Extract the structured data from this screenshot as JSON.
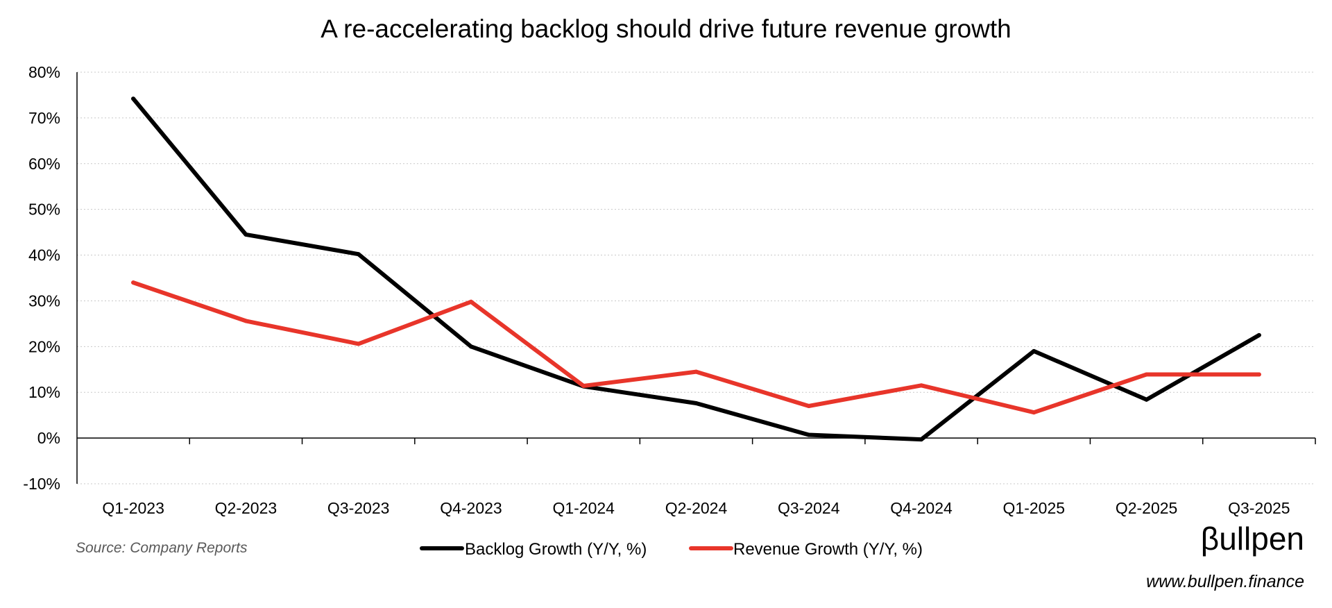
{
  "chart_data": {
    "type": "line",
    "title": "A re-accelerating backlog should drive future revenue growth",
    "categories": [
      "Q1-2023",
      "Q2-2023",
      "Q3-2023",
      "Q4-2023",
      "Q1-2024",
      "Q2-2024",
      "Q3-2024",
      "Q4-2024",
      "Q1-2025",
      "Q2-2025",
      "Q3-2025"
    ],
    "series": [
      {
        "name": "Backlog Growth (Y/Y, %)",
        "color": "#000000",
        "values": [
          74.2,
          44.5,
          40.2,
          20.0,
          11.3,
          7.6,
          0.7,
          -0.3,
          19.0,
          8.4,
          22.5
        ]
      },
      {
        "name": "Revenue Growth (Y/Y, %)",
        "color": "#E8352A",
        "values": [
          34.0,
          25.6,
          20.6,
          29.8,
          11.4,
          14.5,
          7.0,
          11.5,
          5.6,
          13.9,
          13.9
        ]
      }
    ],
    "ylim": [
      -10,
      80
    ],
    "yticks": [
      -10,
      0,
      10,
      20,
      30,
      40,
      50,
      60,
      70,
      80
    ],
    "ytick_labels": [
      "-10%",
      "0%",
      "10%",
      "20%",
      "30%",
      "40%",
      "50%",
      "60%",
      "70%",
      "80%"
    ],
    "grid": true,
    "legend_position": "bottom-center",
    "xlabel": "",
    "ylabel": ""
  },
  "footer": {
    "source": "Source: Company Reports",
    "brand": "βullpen",
    "website": "www.bullpen.finance"
  }
}
